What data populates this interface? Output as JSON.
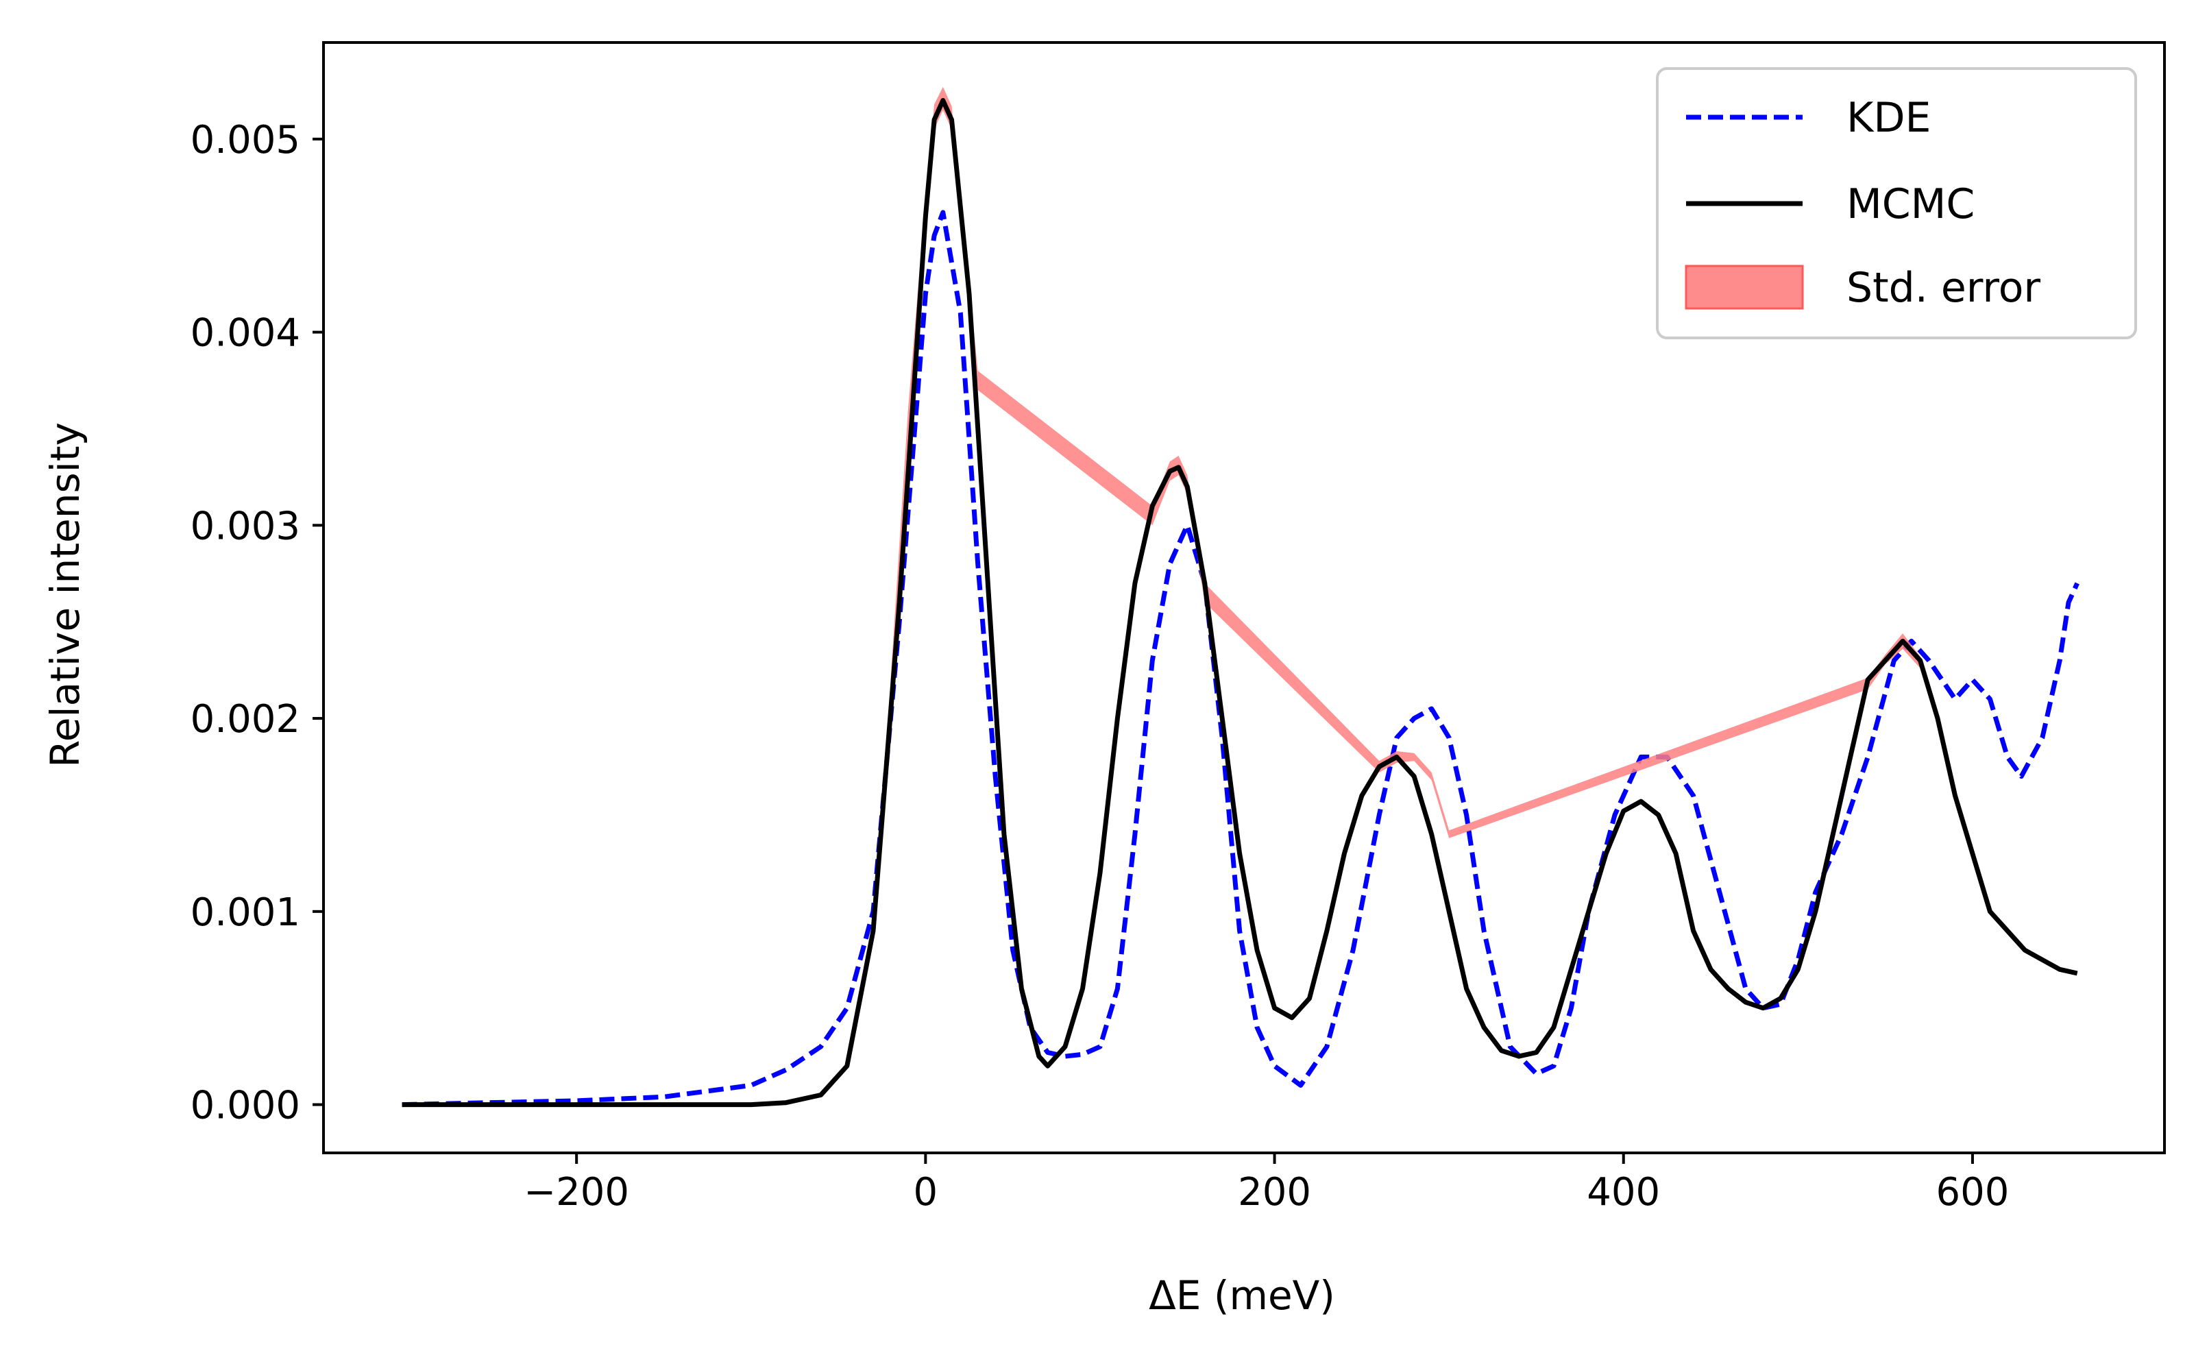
{
  "chart_data": {
    "type": "line",
    "title": "",
    "xlabel": "ΔE (meV)",
    "ylabel": "Relative intensity",
    "xlim": [
      -345,
      710
    ],
    "ylim": [
      -0.00025,
      0.0055
    ],
    "xticks": [
      -200,
      0,
      200,
      400,
      600
    ],
    "xtick_labels": [
      "−200",
      "0",
      "200",
      "400",
      "600"
    ],
    "yticks": [
      0,
      0.001,
      0.002,
      0.003,
      0.004,
      0.005
    ],
    "ytick_labels": [
      "0.000",
      "0.001",
      "0.002",
      "0.003",
      "0.004",
      "0.005"
    ],
    "grid": false,
    "legend_position": "top-right",
    "legend": [
      "KDE",
      "MCMC",
      "Std. error"
    ],
    "colors": {
      "kde": "#0000ff",
      "mcmc": "#000000",
      "stderr": "#ff7f7f"
    },
    "series": [
      {
        "name": "KDE",
        "style": "dashed",
        "x": [
          -300,
          -250,
          -200,
          -150,
          -100,
          -80,
          -60,
          -45,
          -30,
          -15,
          0,
          5,
          10,
          20,
          30,
          40,
          50,
          55,
          60,
          70,
          80,
          90,
          100,
          110,
          120,
          130,
          140,
          150,
          160,
          170,
          180,
          190,
          200,
          215,
          230,
          245,
          260,
          270,
          280,
          290,
          300,
          310,
          320,
          335,
          350,
          360,
          370,
          380,
          395,
          410,
          425,
          440,
          455,
          470,
          480,
          490,
          500,
          510,
          525,
          540,
          555,
          565,
          575,
          590,
          600,
          610,
          620,
          628,
          640,
          650,
          655,
          660
        ],
        "y": [
          0,
          1e-05,
          2e-05,
          4e-05,
          0.0001,
          0.00018,
          0.0003,
          0.0005,
          0.001,
          0.0025,
          0.0042,
          0.0045,
          0.00462,
          0.0041,
          0.0028,
          0.0017,
          0.0008,
          0.0006,
          0.0004,
          0.00027,
          0.00025,
          0.00026,
          0.0003,
          0.0006,
          0.0014,
          0.0023,
          0.0028,
          0.003,
          0.0027,
          0.0019,
          0.0009,
          0.0004,
          0.0002,
          0.0001,
          0.0003,
          0.0008,
          0.0015,
          0.0019,
          0.002,
          0.00205,
          0.0019,
          0.0015,
          0.0009,
          0.0003,
          0.00016,
          0.0002,
          0.0005,
          0.001,
          0.0015,
          0.0018,
          0.0018,
          0.0016,
          0.0011,
          0.0006,
          0.0005,
          0.00052,
          0.00075,
          0.0011,
          0.0014,
          0.0018,
          0.0023,
          0.0024,
          0.0023,
          0.0021,
          0.0022,
          0.0021,
          0.0018,
          0.0017,
          0.0019,
          0.0023,
          0.0026,
          0.0027
        ]
      },
      {
        "name": "MCMC",
        "style": "solid",
        "x": [
          -300,
          -200,
          -100,
          -80,
          -60,
          -45,
          -30,
          -15,
          0,
          5,
          10,
          15,
          25,
          35,
          45,
          55,
          65,
          70,
          80,
          90,
          100,
          110,
          120,
          130,
          140,
          145,
          150,
          160,
          170,
          180,
          190,
          200,
          210,
          220,
          230,
          240,
          250,
          260,
          270,
          280,
          290,
          300,
          310,
          320,
          330,
          340,
          350,
          360,
          370,
          380,
          390,
          400,
          410,
          420,
          430,
          440,
          450,
          460,
          470,
          480,
          490,
          500,
          510,
          520,
          530,
          540,
          550,
          560,
          570,
          580,
          590,
          600,
          610,
          620,
          630,
          640,
          650,
          660
        ],
        "y": [
          0,
          0,
          0,
          1e-05,
          5e-05,
          0.0002,
          0.0009,
          0.0026,
          0.0046,
          0.0051,
          0.0052,
          0.0051,
          0.0042,
          0.0028,
          0.0014,
          0.0006,
          0.00025,
          0.0002,
          0.0003,
          0.0006,
          0.0012,
          0.002,
          0.0027,
          0.0031,
          0.00328,
          0.0033,
          0.0032,
          0.0027,
          0.002,
          0.0013,
          0.0008,
          0.0005,
          0.00045,
          0.00055,
          0.0009,
          0.0013,
          0.0016,
          0.00175,
          0.0018,
          0.0017,
          0.0014,
          0.001,
          0.0006,
          0.0004,
          0.00028,
          0.00025,
          0.00027,
          0.0004,
          0.0007,
          0.001,
          0.0013,
          0.00152,
          0.00157,
          0.0015,
          0.0013,
          0.0009,
          0.0007,
          0.0006,
          0.00053,
          0.0005,
          0.00055,
          0.0007,
          0.001,
          0.0014,
          0.0018,
          0.0022,
          0.0023,
          0.0024,
          0.0023,
          0.002,
          0.0016,
          0.0013,
          0.001,
          0.0009,
          0.0008,
          0.00075,
          0.0007,
          0.00068
        ]
      },
      {
        "name": "Std. error",
        "style": "band",
        "x": [
          -20,
          -10,
          0,
          5,
          10,
          15,
          20,
          30,
          130,
          140,
          145,
          150,
          160,
          260,
          270,
          280,
          290,
          300,
          540,
          550,
          560,
          570,
          580
        ],
        "lower": [
          0.0021,
          0.0034,
          0.0045,
          0.00505,
          0.00515,
          0.00505,
          0.0046,
          0.0037,
          0.003,
          0.00323,
          0.00326,
          0.00316,
          0.0026,
          0.00172,
          0.00177,
          0.00178,
          0.00168,
          0.00138,
          0.00215,
          0.00228,
          0.00236,
          0.00226,
          0.00196
        ],
        "upper": [
          0.0022,
          0.0036,
          0.0047,
          0.00518,
          0.00527,
          0.00517,
          0.0047,
          0.0038,
          0.0031,
          0.00333,
          0.00336,
          0.00326,
          0.0027,
          0.00178,
          0.00183,
          0.00182,
          0.00172,
          0.00142,
          0.00221,
          0.00233,
          0.00244,
          0.00232,
          0.00202
        ]
      }
    ]
  }
}
